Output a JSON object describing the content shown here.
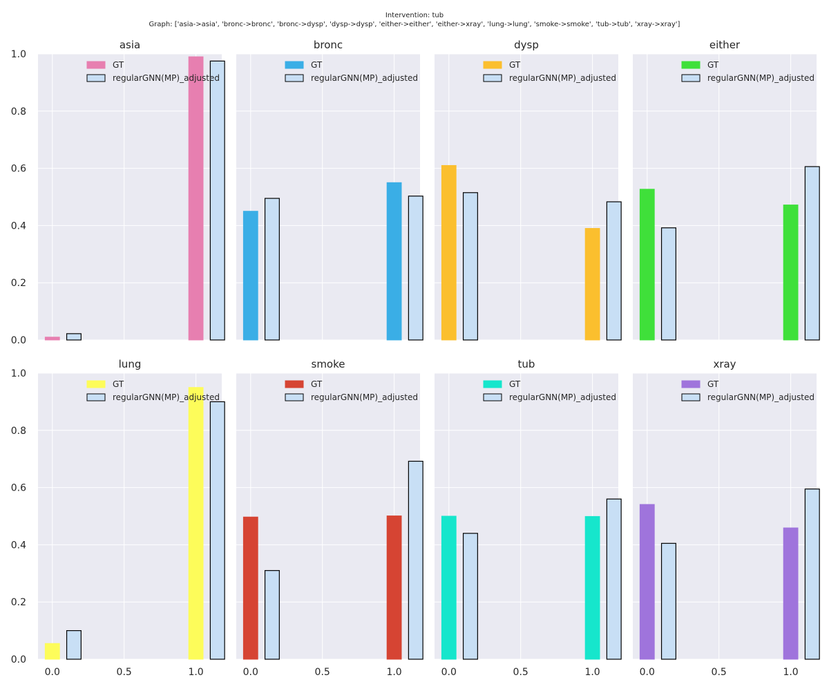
{
  "suptitle": {
    "line1": "Intervention: tub",
    "line2": "Graph: ['asia->asia', 'bronc->bronc', 'bronc->dysp', 'dysp->dysp', 'either->either', 'either->xray', 'lung->lung', 'smoke->smoke', 'tub->tub', 'xray->xray']"
  },
  "chart_data": {
    "type": "bar",
    "categories": [
      0,
      1
    ],
    "xticks": [
      "0.0",
      "0.5",
      "1.0"
    ],
    "xlim": [
      -0.1,
      1.18
    ],
    "ylim": [
      0,
      1
    ],
    "yticks": [
      "0.0",
      "0.2",
      "0.4",
      "0.6",
      "0.8",
      "1.0"
    ],
    "grid": true,
    "legend_location": "top-right",
    "series_names": [
      "GT",
      "regularGNN(MP)_adjusted"
    ],
    "comparison_color": "#c8dff5",
    "panels": [
      {
        "title": "asia",
        "gt_color": "#e77fb0",
        "gt": [
          0.01,
          0.99
        ],
        "model": [
          0.022,
          0.975
        ]
      },
      {
        "title": "bronc",
        "gt_color": "#3aaee6",
        "gt": [
          0.45,
          0.55
        ],
        "model": [
          0.495,
          0.503
        ]
      },
      {
        "title": "dysp",
        "gt_color": "#fbbf2e",
        "gt": [
          0.61,
          0.39
        ],
        "model": [
          0.515,
          0.483
        ]
      },
      {
        "title": "either",
        "gt_color": "#3fe03a",
        "gt": [
          0.527,
          0.472
        ],
        "model": [
          0.392,
          0.606
        ]
      },
      {
        "title": "lung",
        "gt_color": "#fdfc5a",
        "gt": [
          0.055,
          0.95
        ],
        "model": [
          0.1,
          0.9
        ]
      },
      {
        "title": "smoke",
        "gt_color": "#d64433",
        "gt": [
          0.497,
          0.501
        ],
        "model": [
          0.31,
          0.692
        ]
      },
      {
        "title": "tub",
        "gt_color": "#16e6cc",
        "gt": [
          0.5,
          0.499
        ],
        "model": [
          0.44,
          0.56
        ]
      },
      {
        "title": "xray",
        "gt_color": "#9f74dc",
        "gt": [
          0.541,
          0.459
        ],
        "model": [
          0.405,
          0.595
        ]
      }
    ]
  }
}
